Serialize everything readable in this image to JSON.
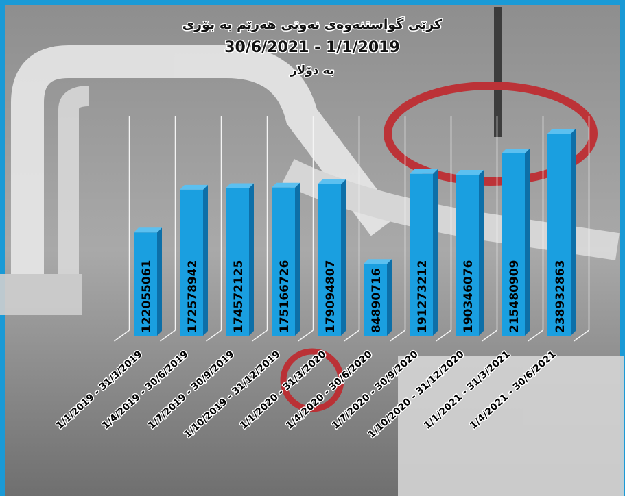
{
  "chart_data": {
    "type": "bar3d",
    "title": "کرێی گواستنەوەی نەوتی هەرێم بە بۆری",
    "subtitle": "30/6/2021 - 1/1/2019",
    "unit_label": "بە دۆلار",
    "categories": [
      "1/1/2019 - 31/3/2019",
      "1/4/2019 - 30/6/2019",
      "1/7/2019 - 30/9/2019",
      "1/10/2019 - 31/12/2019",
      "1/1/2020 - 31/3/2020",
      "1/4/2020 - 30/6/2020",
      "1/7/2020 - 30/9/2020",
      "1/10/2020 - 31/12/2020",
      "1/1/2021 - 31/3/2021",
      "1/4/2021 - 30/6/2021"
    ],
    "values": [
      122055061,
      172578942,
      174572125,
      175166726,
      179094807,
      84890716,
      191273212,
      190346076,
      215480909,
      238932863
    ],
    "color": "#1a9fe0"
  }
}
